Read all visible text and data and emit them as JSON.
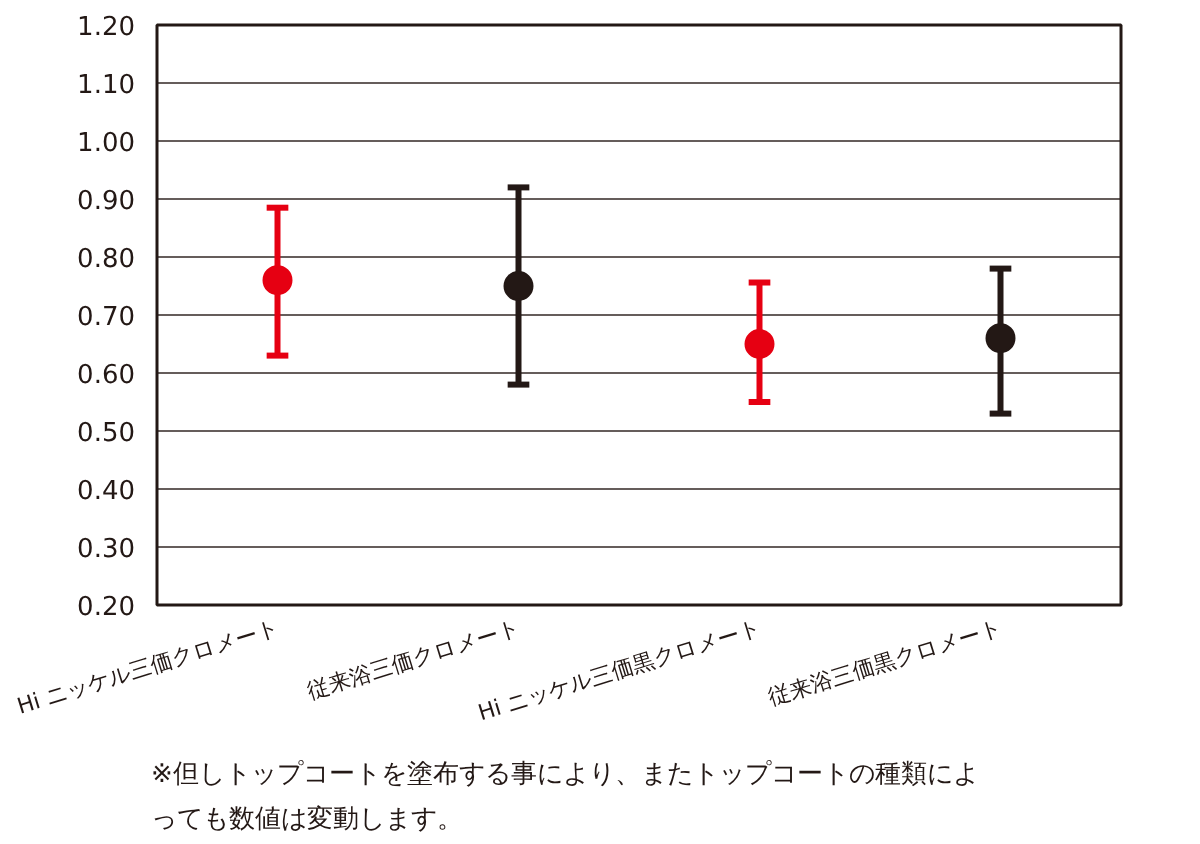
{
  "chart_data": {
    "type": "scatter",
    "categories": [
      "Hi ニッケル三価クロメート",
      "従来浴三価クロメート",
      "Hi ニッケル三価黒クロメート",
      "従来浴三価黒クロメート"
    ],
    "values": [
      0.76,
      0.75,
      0.65,
      0.66
    ],
    "colors": [
      "#e60012",
      "#231815",
      "#e60012",
      "#231815"
    ],
    "errors": [
      [
        0.63,
        0.885
      ],
      [
        0.58,
        0.92
      ],
      [
        0.55,
        0.756
      ],
      [
        0.53,
        0.78
      ]
    ],
    "ylim": [
      0.2,
      1.2
    ],
    "yticks": [
      {
        "value": 0.2,
        "label": "0.20"
      },
      {
        "value": 0.3,
        "label": "0.30"
      },
      {
        "value": 0.4,
        "label": "0.40"
      },
      {
        "value": 0.5,
        "label": "0.50"
      },
      {
        "value": 0.6,
        "label": "0.60"
      },
      {
        "value": 0.7,
        "label": "0.70"
      },
      {
        "value": 0.8,
        "label": "0.80"
      },
      {
        "value": 0.9,
        "label": "0.90"
      },
      {
        "value": 1.0,
        "label": "1.00"
      },
      {
        "value": 1.1,
        "label": "1.10"
      },
      {
        "value": 1.2,
        "label": "1.20"
      }
    ],
    "grid": "y",
    "marker": "circle",
    "annotations": [
      "※但しトップコートを塗布する事により、またトップコートの種類によっても数値は変動します。"
    ]
  }
}
